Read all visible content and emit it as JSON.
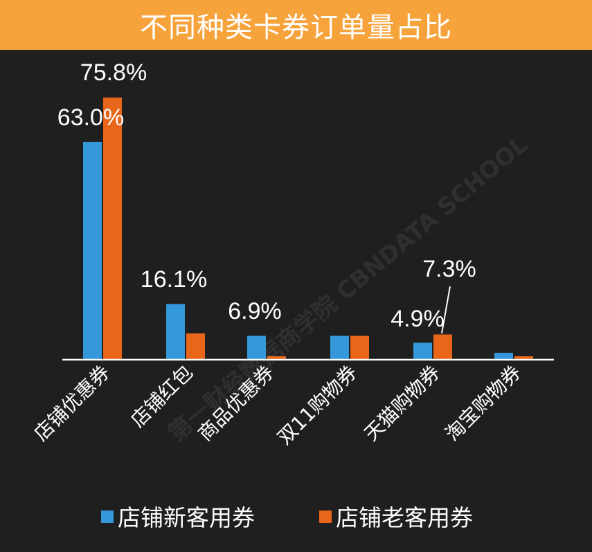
{
  "title": "不同种类卡券订单量占比",
  "watermark": "第一财经数据商学院 CBNDATA SCHOOL",
  "colors": {
    "title_bg": "#f7a33c",
    "background": "#1f1f1f",
    "series_new": "#3498db",
    "series_old": "#e8661a"
  },
  "chart_data": {
    "type": "bar",
    "title": "不同种类卡券订单量占比",
    "categories": [
      "店铺优惠券",
      "店铺红包",
      "商品优惠券",
      "双11购物券",
      "天猫购物券",
      "淘宝购物券"
    ],
    "series": [
      {
        "name": "店铺新客用券",
        "values": [
          63.0,
          16.1,
          6.9,
          6.9,
          4.9,
          2.0
        ],
        "labels": [
          "63.0%",
          "16.1%",
          "6.9%",
          "",
          "4.9%",
          ""
        ]
      },
      {
        "name": "店铺老客用券",
        "values": [
          75.8,
          7.6,
          1.0,
          6.9,
          7.3,
          1.0
        ],
        "labels": [
          "75.8%",
          "",
          "",
          "",
          "7.3%",
          ""
        ]
      }
    ],
    "ylim": [
      0,
      80
    ],
    "xlabel": "",
    "ylabel": "",
    "grid": false,
    "legend": "bottom"
  }
}
